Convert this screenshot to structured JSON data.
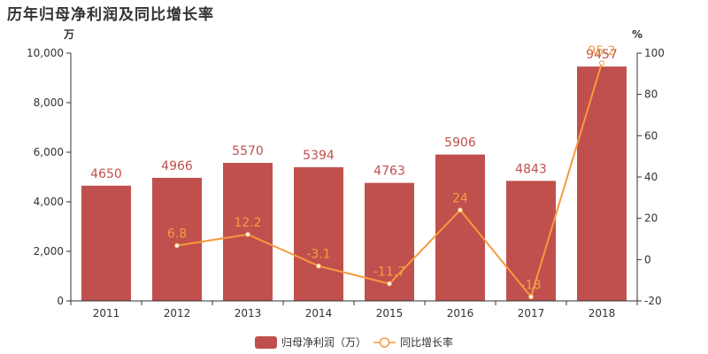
{
  "title": "历年归母净利润及同比增长率",
  "chart_data": {
    "type": "bar",
    "title": "历年归母净利润及同比增长率",
    "categories": [
      "2011",
      "2012",
      "2013",
      "2014",
      "2015",
      "2016",
      "2017",
      "2018"
    ],
    "series": [
      {
        "name": "归母净利润（万）",
        "type": "bar",
        "axis": "left",
        "values": [
          4650,
          4966,
          5570,
          5394,
          4763,
          5906,
          4843,
          9457
        ],
        "labels": [
          "4650",
          "4966",
          "5570",
          "5394",
          "4763",
          "5906",
          "4843",
          "9457"
        ],
        "color": "#c0504d"
      },
      {
        "name": "同比增长率",
        "type": "line",
        "axis": "right",
        "values": [
          null,
          6.8,
          12.2,
          -3.1,
          -11.7,
          24,
          -18,
          95.2
        ],
        "labels": [
          "",
          "6.8",
          "12.2",
          "-3.1",
          "-11.7",
          "24",
          "-18",
          "95.2"
        ],
        "color": "#f59a3e"
      }
    ],
    "y_left": {
      "unit": "万",
      "ylim": [
        0,
        10000
      ],
      "ticks": [
        0,
        2000,
        4000,
        6000,
        8000,
        10000
      ],
      "tick_labels": [
        "0",
        "2,000",
        "4,000",
        "6,000",
        "8,000",
        "10,000"
      ]
    },
    "y_right": {
      "unit": "%",
      "ylim": [
        -20,
        100
      ],
      "ticks": [
        -20,
        0,
        20,
        40,
        60,
        80,
        100
      ],
      "tick_labels": [
        "-20",
        "0",
        "20",
        "40",
        "60",
        "80",
        "100"
      ]
    },
    "grid": false,
    "legend": "bottom-center"
  }
}
